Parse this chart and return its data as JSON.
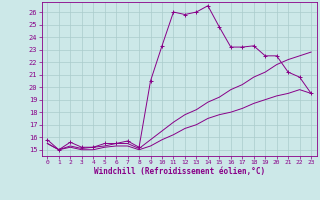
{
  "xlabel": "Windchill (Refroidissement éolien,°C)",
  "bg_color": "#cce8e8",
  "line_color": "#880088",
  "grid_color": "#aacccc",
  "ylim": [
    14.5,
    26.8
  ],
  "xlim": [
    -0.5,
    23.5
  ],
  "yticks": [
    15,
    16,
    17,
    18,
    19,
    20,
    21,
    22,
    23,
    24,
    25,
    26
  ],
  "xticks": [
    0,
    1,
    2,
    3,
    4,
    5,
    6,
    7,
    8,
    9,
    10,
    11,
    12,
    13,
    14,
    15,
    16,
    17,
    18,
    19,
    20,
    21,
    22,
    23
  ],
  "line1_x": [
    0,
    1,
    2,
    3,
    4,
    5,
    6,
    7,
    8,
    9,
    10,
    11,
    12,
    13,
    14,
    15,
    16,
    17,
    18,
    19,
    20,
    21,
    22,
    23
  ],
  "line1_y": [
    15.8,
    15.0,
    15.6,
    15.2,
    15.2,
    15.5,
    15.5,
    15.7,
    15.2,
    20.5,
    23.3,
    26.0,
    25.8,
    26.0,
    26.5,
    24.8,
    23.2,
    23.2,
    23.3,
    22.5,
    22.5,
    21.2,
    20.8,
    19.5
  ],
  "line2_x": [
    0,
    1,
    2,
    3,
    4,
    5,
    6,
    7,
    8,
    9,
    10,
    11,
    12,
    13,
    14,
    15,
    16,
    17,
    18,
    19,
    20,
    21,
    22,
    23
  ],
  "line2_y": [
    15.5,
    15.0,
    15.3,
    15.1,
    15.2,
    15.3,
    15.5,
    15.5,
    15.1,
    15.8,
    16.5,
    17.2,
    17.8,
    18.2,
    18.8,
    19.2,
    19.8,
    20.2,
    20.8,
    21.2,
    21.8,
    22.2,
    22.5,
    22.8
  ],
  "line3_x": [
    0,
    1,
    2,
    3,
    4,
    5,
    6,
    7,
    8,
    9,
    10,
    11,
    12,
    13,
    14,
    15,
    16,
    17,
    18,
    19,
    20,
    21,
    22,
    23
  ],
  "line3_y": [
    15.5,
    15.0,
    15.2,
    15.0,
    15.0,
    15.2,
    15.3,
    15.3,
    15.0,
    15.3,
    15.8,
    16.2,
    16.7,
    17.0,
    17.5,
    17.8,
    18.0,
    18.3,
    18.7,
    19.0,
    19.3,
    19.5,
    19.8,
    19.5
  ]
}
